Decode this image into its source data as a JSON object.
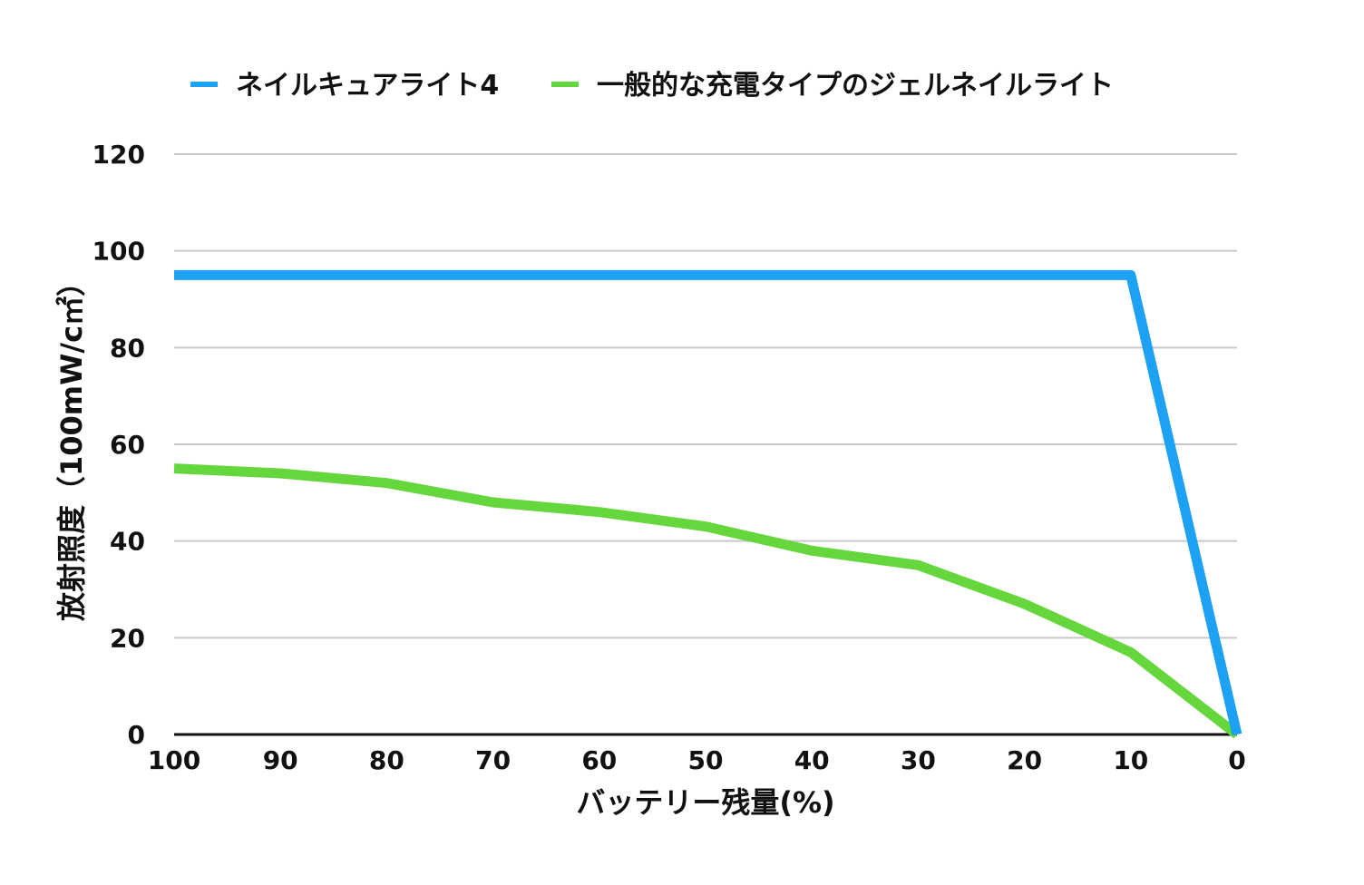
{
  "chart_data": {
    "type": "line",
    "x": [
      100,
      90,
      80,
      70,
      60,
      50,
      40,
      30,
      20,
      10,
      0
    ],
    "x_tick_labels": [
      "100",
      "90",
      "80",
      "70",
      "60",
      "50",
      "40",
      "30",
      "20",
      "10",
      "0"
    ],
    "xlim": [
      100,
      0
    ],
    "xlabel": "バッテリー残量(%)",
    "ylabel": "放射照度（100mW/c㎡）",
    "ylim": [
      0,
      120
    ],
    "y_ticks": [
      0,
      20,
      40,
      60,
      80,
      100,
      120
    ],
    "y_tick_labels": [
      "0",
      "20",
      "40",
      "60",
      "80",
      "100",
      "120"
    ],
    "grid": true,
    "legend_position": "top-center",
    "series": [
      {
        "name": "ネイルキュアライト4",
        "color": "#1da1f2",
        "values": [
          95,
          95,
          95,
          95,
          95,
          95,
          95,
          95,
          95,
          95,
          0
        ]
      },
      {
        "name": "一般的な充電タイプのジェルネイルライト",
        "color": "#66d63d",
        "values": [
          55,
          54,
          52,
          48,
          46,
          43,
          38,
          35,
          27,
          17,
          0
        ]
      }
    ]
  }
}
